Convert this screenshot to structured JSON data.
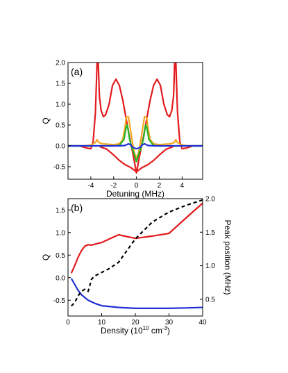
{
  "chart_data": [
    {
      "type": "line",
      "panel_label": "(a)",
      "xlabel": "Detuning (MHz)",
      "ylabel": "Q",
      "xlim": [
        -6,
        5.8
      ],
      "ylim": [
        -0.8,
        2.0
      ],
      "xticks": [
        -4,
        -2,
        0,
        2,
        4
      ],
      "yticks": [
        -0.5,
        0.0,
        0.5,
        1.0,
        1.5,
        2.0
      ],
      "xtick_labels": [
        "-4",
        "-2",
        "0",
        "2",
        "4"
      ],
      "ytick_labels": [
        "-0.5",
        "0.0",
        "0.5",
        "1.0",
        "1.5",
        "2.0"
      ],
      "grid": false,
      "series": [
        {
          "color": "#e31a1c",
          "x": [
            -6,
            -5,
            -4.4,
            -4.0,
            -3.8,
            -3.6,
            -3.45,
            -3.4,
            -3.35,
            -3.25,
            -3.1,
            -2.9,
            -2.7,
            -2.4,
            -2.1,
            -1.8,
            -1.5,
            -1.2,
            -0.9,
            -0.6,
            -0.3,
            0.0,
            0.3,
            0.6,
            0.9,
            1.2,
            1.5,
            1.8,
            2.1,
            2.4,
            2.7,
            2.9,
            3.1,
            3.25,
            3.35,
            3.4,
            3.45,
            3.6,
            3.8,
            4.0,
            4.4,
            5,
            5.8
          ],
          "y": [
            0.0,
            0.0,
            -0.05,
            -0.07,
            0.1,
            0.8,
            2.0,
            2.0,
            2.0,
            1.2,
            0.85,
            0.7,
            0.75,
            1.0,
            1.45,
            1.6,
            1.45,
            1.1,
            0.65,
            0.2,
            -0.2,
            -0.65,
            -0.2,
            0.2,
            0.65,
            1.1,
            1.45,
            1.6,
            1.45,
            1.0,
            0.75,
            0.7,
            0.85,
            1.2,
            2.0,
            2.0,
            2.0,
            0.8,
            0.1,
            -0.07,
            -0.05,
            0.0,
            0.0
          ]
        },
        {
          "color": "#e31a1c",
          "x": [
            -3.2,
            -2.6,
            -2.0,
            -1.5,
            -1.0,
            -0.5,
            0.0,
            0.5,
            1.0,
            1.5,
            2.0,
            2.6,
            3.2
          ],
          "y": [
            -0.02,
            -0.08,
            -0.22,
            -0.35,
            -0.45,
            -0.52,
            -0.62,
            -0.52,
            -0.45,
            -0.35,
            -0.22,
            -0.08,
            -0.02
          ]
        },
        {
          "color": "#f5a623",
          "x": [
            -6,
            -4.5,
            -4.0,
            -3.6,
            -3.45,
            -3.3,
            -3.0,
            -2.0,
            -1.5,
            -1.2,
            -1.0,
            -0.9,
            -0.7,
            -0.5,
            -0.3,
            -0.15,
            0.0,
            0.15,
            0.3,
            0.5,
            0.7,
            0.9,
            1.0,
            1.2,
            1.5,
            2.0,
            3.0,
            3.3,
            3.45,
            3.6,
            4.0,
            4.5,
            5.8
          ],
          "y": [
            0.0,
            0.0,
            0.02,
            0.08,
            0.15,
            0.08,
            0.05,
            0.03,
            0.05,
            0.15,
            0.45,
            0.68,
            0.7,
            0.35,
            0.0,
            -0.2,
            -0.28,
            -0.2,
            0.0,
            0.35,
            0.7,
            0.68,
            0.45,
            0.15,
            0.05,
            0.03,
            0.05,
            0.08,
            0.15,
            0.08,
            0.02,
            0.0,
            0.0
          ]
        },
        {
          "color": "#22b526",
          "x": [
            -6,
            -2.0,
            -1.5,
            -1.1,
            -0.9,
            -0.8,
            -0.6,
            -0.4,
            -0.2,
            0.0,
            0.2,
            0.4,
            0.6,
            0.8,
            0.9,
            1.1,
            1.5,
            2.0,
            5.8
          ],
          "y": [
            0.0,
            0.0,
            0.01,
            0.15,
            0.45,
            0.5,
            0.15,
            -0.05,
            -0.2,
            -0.38,
            -0.2,
            -0.05,
            0.15,
            0.5,
            0.45,
            0.15,
            0.01,
            0.0,
            0.0
          ]
        },
        {
          "color": "#1f2fd6",
          "x": [
            -6,
            -1.5,
            -1.0,
            -0.7,
            -0.5,
            -0.3,
            -0.1,
            0.0,
            0.1,
            0.3,
            0.5,
            0.7,
            1.0,
            1.5,
            5.8
          ],
          "y": [
            0.0,
            0.0,
            0.01,
            0.05,
            0.02,
            -0.04,
            -0.06,
            -0.07,
            -0.06,
            -0.04,
            0.02,
            0.05,
            0.01,
            0.0,
            0.0
          ]
        }
      ]
    },
    {
      "type": "line",
      "panel_label": "(b)",
      "xlabel_main": "Density (10",
      "xlabel_sup1": "10",
      "xlabel_mid": " cm",
      "xlabel_sup2": "-3",
      "xlabel_end": ")",
      "ylabel": "Q",
      "ylabel_right": "Peak position (MHz)",
      "xlim": [
        0,
        40
      ],
      "ylim": [
        -0.85,
        1.75
      ],
      "ylim_right": [
        0.25,
        2.0
      ],
      "xticks": [
        0,
        10,
        20,
        30,
        40
      ],
      "yticks": [
        -0.5,
        0.0,
        0.5,
        1.0,
        1.5
      ],
      "yticks_right": [
        0.5,
        1.0,
        1.5,
        2.0
      ],
      "xtick_labels": [
        "0",
        "10",
        "20",
        "30",
        "40"
      ],
      "ytick_labels": [
        "-0.5",
        "0.0",
        "0.5",
        "1.0",
        "1.5"
      ],
      "ytick_labels_right": [
        "0.5",
        "1.0",
        "1.5",
        "2.0"
      ],
      "grid": false,
      "series": [
        {
          "color": "#e31a1c",
          "axis": "left",
          "x": [
            1,
            2,
            3,
            4,
            5,
            6,
            7,
            8,
            10,
            15,
            20,
            25,
            30,
            35,
            40
          ],
          "y": [
            0.1,
            0.27,
            0.45,
            0.6,
            0.7,
            0.73,
            0.72,
            0.74,
            0.78,
            0.95,
            0.87,
            0.92,
            0.98,
            1.32,
            1.65
          ]
        },
        {
          "color": "#1f2fd6",
          "axis": "left",
          "x": [
            1,
            2,
            3,
            4,
            5,
            6,
            8,
            10,
            15,
            20,
            25,
            30,
            35,
            40
          ],
          "y": [
            -0.02,
            -0.15,
            -0.28,
            -0.38,
            -0.44,
            -0.5,
            -0.57,
            -0.62,
            -0.66,
            -0.68,
            -0.68,
            -0.68,
            -0.67,
            -0.66
          ],
          "style": "solid"
        },
        {
          "color": "#000000",
          "axis": "right",
          "style": "dashed",
          "x": [
            1,
            2,
            3,
            4,
            5,
            6,
            7,
            8,
            10,
            12,
            15,
            20,
            25,
            30,
            35,
            40
          ],
          "y": [
            0.4,
            0.45,
            0.55,
            0.62,
            0.65,
            0.62,
            0.8,
            0.85,
            0.9,
            0.95,
            1.05,
            1.4,
            1.65,
            1.8,
            1.9,
            1.98
          ]
        }
      ]
    }
  ]
}
